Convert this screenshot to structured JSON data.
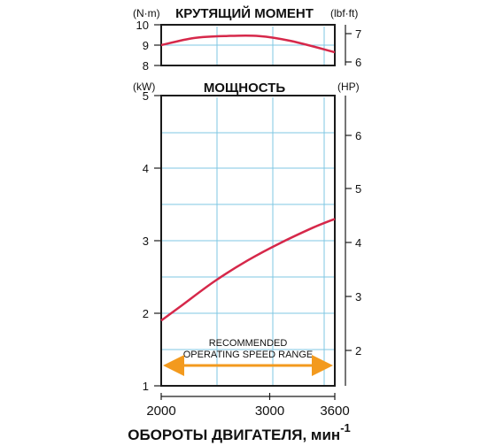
{
  "chart_data": [
    {
      "type": "line",
      "title": "КРУТЯЩИЙ МОМЕНТ",
      "left_unit": "(N·m)",
      "right_unit": "(lbf·ft)",
      "x": [
        2000,
        2300,
        2600,
        2900,
        3200,
        3600
      ],
      "y": [
        9.0,
        9.35,
        9.45,
        9.45,
        9.2,
        8.65
      ],
      "ylim": [
        8,
        10
      ],
      "left_ticks": [
        "10",
        "9",
        "8"
      ],
      "right_ticks": [
        "7",
        "6"
      ],
      "color": "#d6284a"
    },
    {
      "type": "line",
      "title": "МОЩНОСТЬ",
      "left_unit": "(kW)",
      "right_unit": "(HP)",
      "x": [
        2000,
        2200,
        2500,
        2800,
        3100,
        3400,
        3600
      ],
      "y": [
        1.9,
        2.12,
        2.45,
        2.73,
        2.97,
        3.18,
        3.3
      ],
      "ylim": [
        1,
        5
      ],
      "left_ticks": [
        "5",
        "4",
        "3",
        "2",
        "1"
      ],
      "right_ticks": [
        "6",
        "5",
        "4",
        "3",
        "2"
      ],
      "color": "#d6284a",
      "annotation": [
        "RECOMMENDED",
        "OPERATING SPEED RANGE"
      ],
      "range_arrow": [
        2000,
        3600
      ],
      "range_color": "#f39a1e"
    }
  ],
  "x_axis": {
    "ticks": [
      "2000",
      "3000",
      "3600"
    ],
    "label_main": "ОБОРОТЫ ДВИГАТЕЛЯ, мин",
    "label_sup": "-1",
    "xlim": [
      2000,
      3600
    ]
  }
}
